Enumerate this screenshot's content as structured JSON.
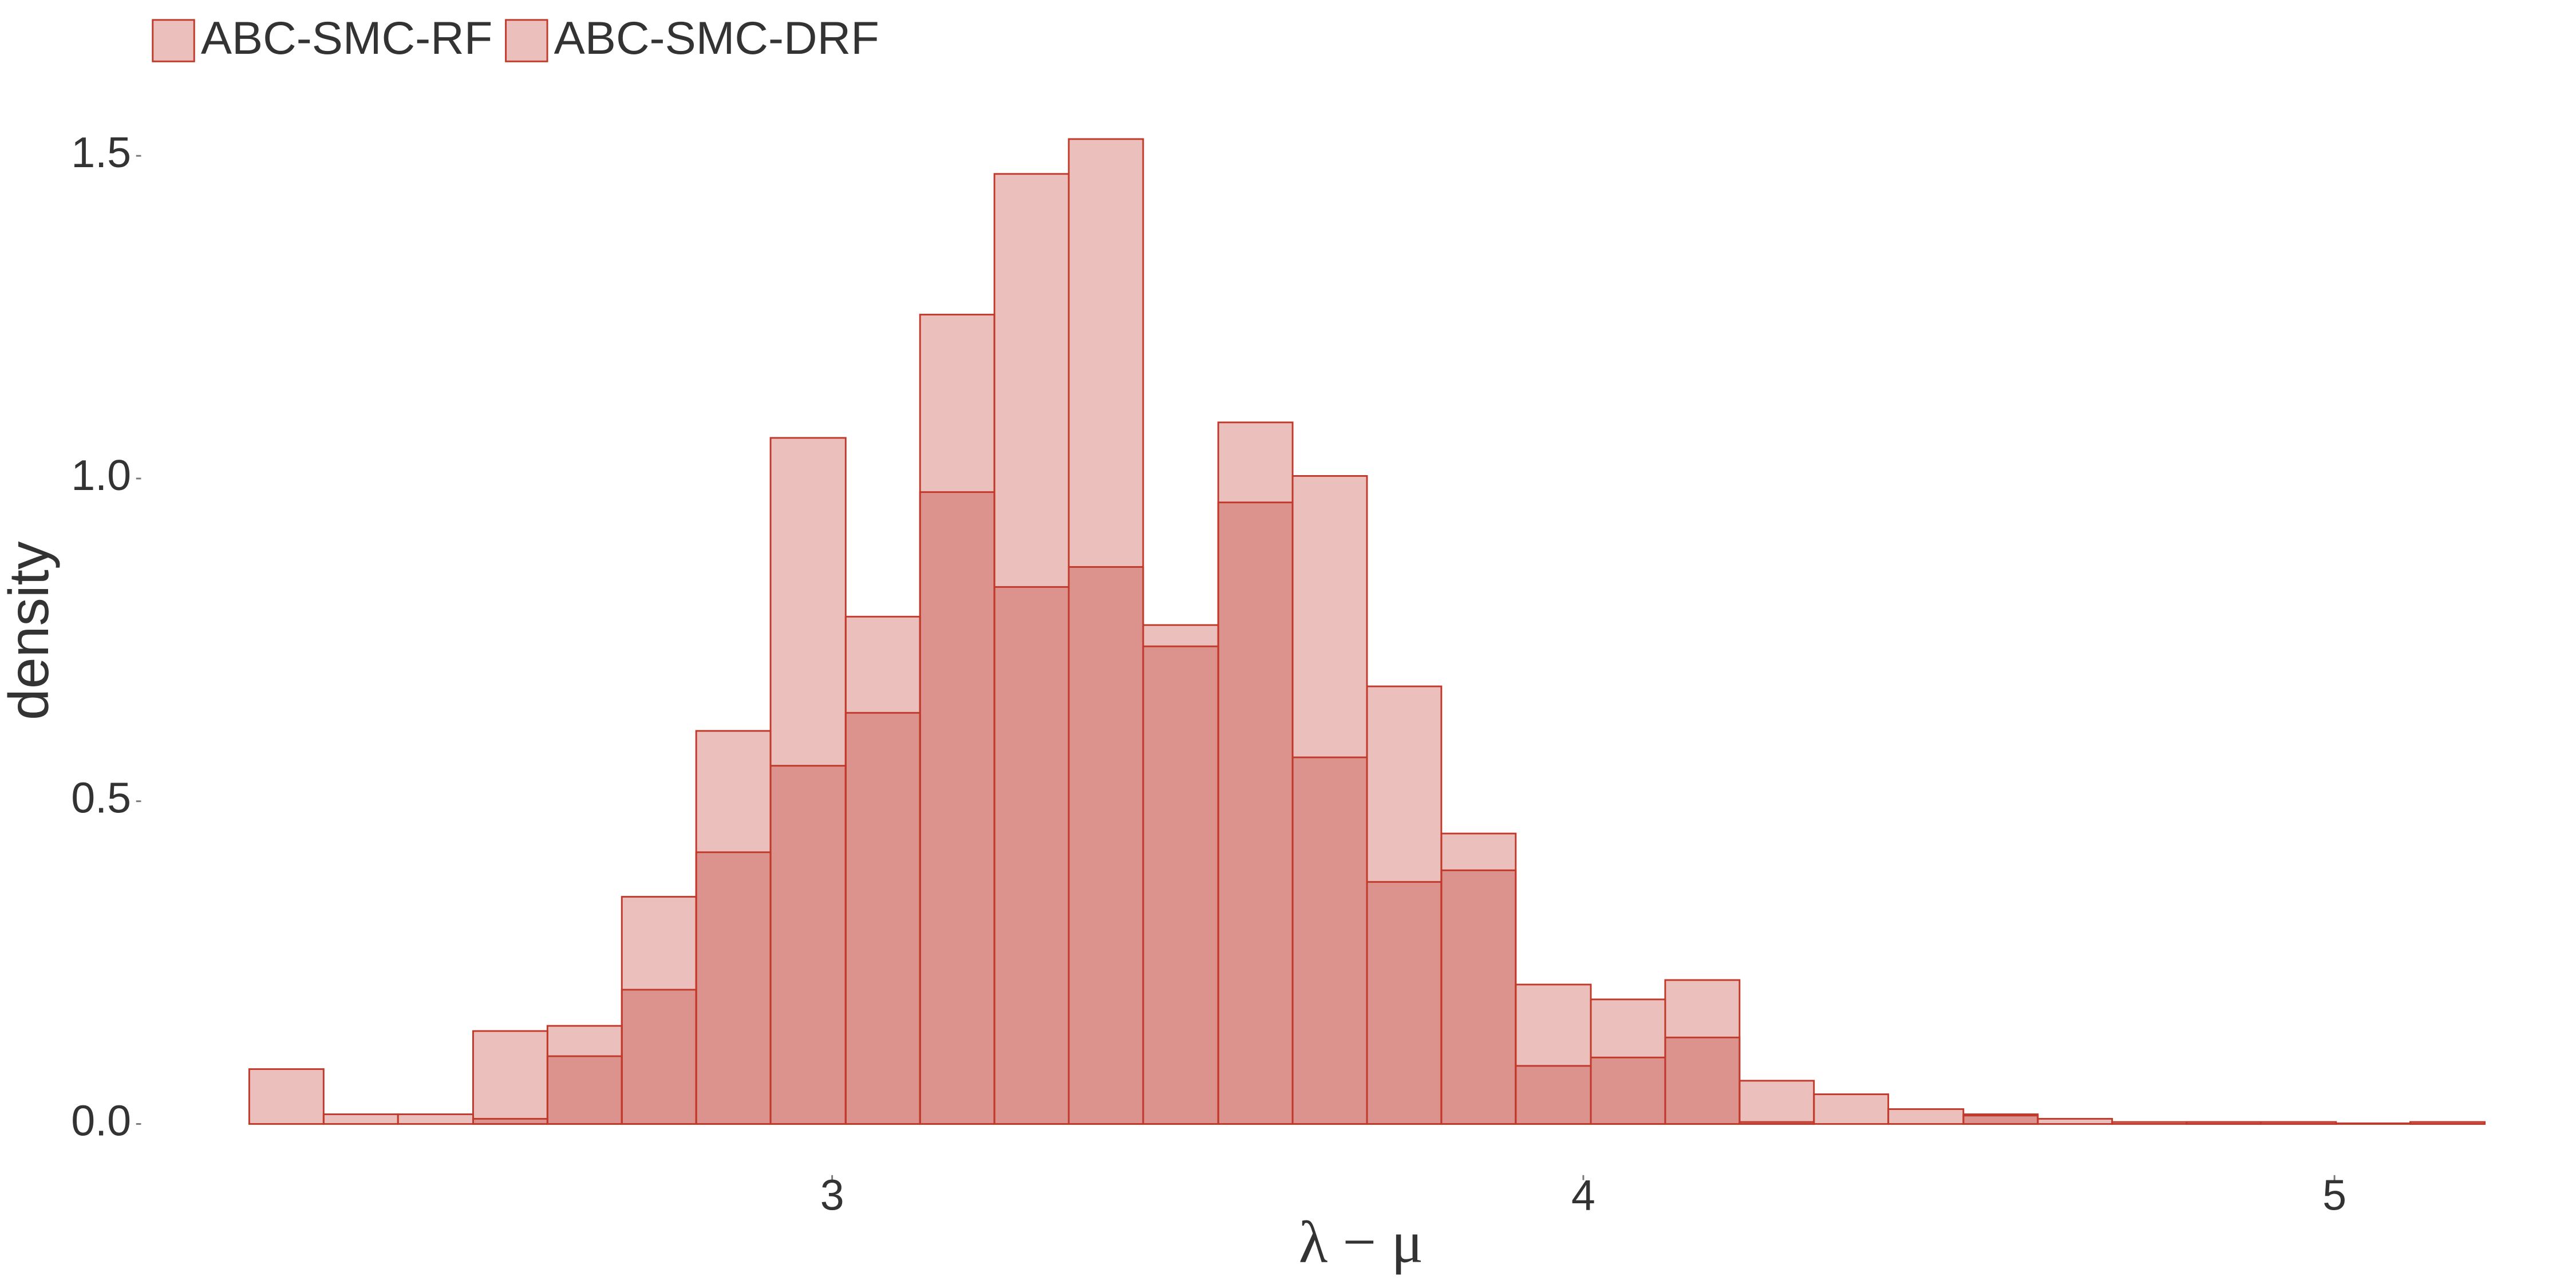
{
  "chart_data": {
    "type": "histogram",
    "xlabel": "λ − μ",
    "ylabel": "density",
    "bins": [
      2.224,
      2.323,
      2.422,
      2.522,
      2.621,
      2.72,
      2.819,
      2.918,
      3.018,
      3.117,
      3.216,
      3.315,
      3.414,
      3.514,
      3.613,
      3.712,
      3.811,
      3.91,
      4.01,
      4.109,
      4.208,
      4.307,
      4.406,
      4.506,
      4.605,
      4.704,
      4.803,
      4.902,
      5.002,
      5.101,
      5.2
    ],
    "series": [
      {
        "name": "ABC-SMC-RF",
        "color": "#c0392b",
        "values": [
          0.085,
          0.015,
          0.015,
          0.144,
          0.152,
          0.352,
          0.609,
          1.063,
          0.786,
          1.254,
          1.472,
          1.526,
          0.773,
          1.087,
          1.004,
          0.678,
          0.45,
          0.216,
          0.193,
          0.223,
          0.067,
          0.046,
          0.023,
          0.015,
          0.008,
          0.003,
          0.003,
          0.003,
          0.001,
          0.003
        ]
      },
      {
        "name": "ABC-SMC-DRF",
        "color": "#c0392b",
        "values": [
          0,
          0,
          0,
          0.008,
          0.105,
          0.208,
          0.421,
          0.555,
          0.637,
          0.979,
          0.832,
          0.863,
          0.74,
          0.963,
          0.568,
          0.375,
          0.393,
          0.09,
          0.103,
          0.134,
          0.003,
          0,
          0,
          0.013,
          0,
          0,
          0.003,
          0.003,
          0,
          0.003
        ]
      }
    ],
    "xlim": [
      2.08,
      5.2
    ],
    "xticks": [
      3,
      4,
      5
    ],
    "ylim": [
      -0.033,
      1.6
    ],
    "yticks": [
      {
        "value": 0,
        "label": "0.0"
      },
      0.5,
      {
        "value": 1,
        "label": "1.0"
      },
      1.5
    ],
    "legend": "top-left",
    "grid": false
  }
}
